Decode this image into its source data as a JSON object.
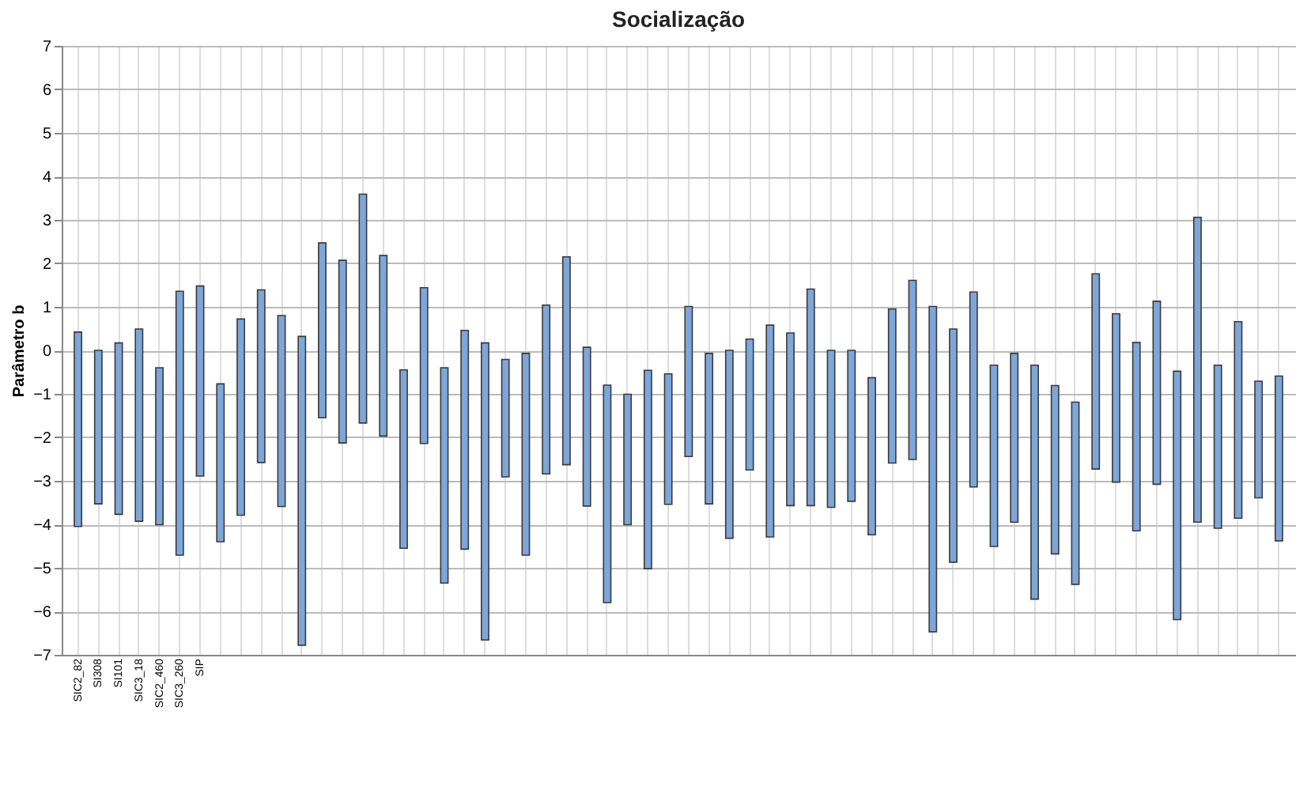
{
  "chart_data": {
    "type": "bar",
    "title": "Socialização",
    "ylabel": "Parâmetro b",
    "categories": [
      "SIC2_82",
      "SI308",
      "SI101",
      "SIC3_18",
      "SIC2_460",
      "SIC3_260",
      "SIP",
      null,
      null,
      null,
      null,
      null,
      null,
      null,
      null,
      null,
      null,
      null,
      null,
      null,
      null,
      null,
      null,
      null,
      null,
      null,
      null,
      null,
      null,
      null,
      null,
      null,
      null,
      null,
      null,
      null,
      null,
      null,
      null,
      null,
      null,
      null,
      null,
      null,
      null,
      null,
      null,
      null,
      null,
      null,
      null,
      null,
      null,
      null,
      null,
      null,
      null,
      null,
      null,
      null
    ],
    "base": [
      -4.05,
      -3.53,
      -3.77,
      -3.93,
      -4.01,
      -4.71,
      -2.89,
      -4.4,
      -3.79,
      -2.58,
      -3.59,
      -6.78,
      -1.55,
      -2.13,
      -1.67,
      -1.97,
      -4.55,
      -2.14,
      -5.35,
      -4.57,
      -6.66,
      -2.91,
      -4.71,
      -2.84,
      -2.63,
      -3.58,
      -5.8,
      -4.01,
      -5.02,
      -3.54,
      -2.44,
      -3.53,
      -4.32,
      -2.75,
      -4.29,
      -3.57,
      -3.57,
      -3.61,
      -3.47,
      -4.24,
      -2.59,
      -2.51,
      -6.47,
      -4.87,
      -3.14,
      -4.51,
      -3.95,
      -5.72,
      -4.68,
      -5.38,
      -2.73,
      -3.03,
      -4.15,
      -3.08,
      -6.19,
      -3.95,
      -4.09,
      -3.86,
      -3.39,
      -4.38
    ],
    "values": [
      4.47,
      3.53,
      3.94,
      4.42,
      3.61,
      6.07,
      4.37,
      3.63,
      4.51,
      3.97,
      4.39,
      7.1,
      4.02,
      4.2,
      5.26,
      4.15,
      4.1,
      3.58,
      4.95,
      5.03,
      6.83,
      2.7,
      4.64,
      3.88,
      4.78,
      3.65,
      5.0,
      3.0,
      4.56,
      3.0,
      3.45,
      3.46,
      4.32,
      3.01,
      4.87,
      3.97,
      4.98,
      3.61,
      3.47,
      3.61,
      3.54,
      4.12,
      7.48,
      5.36,
      4.48,
      4.17,
      3.88,
      5.38,
      3.87,
      4.19,
      4.49,
      3.87,
      4.33,
      4.21,
      5.71,
      7.01,
      3.75,
      4.52,
      2.68,
      3.79
    ],
    "color": "#7ea6d9",
    "ylim": [
      -7,
      7
    ],
    "yticks": [
      -7,
      -6,
      -5,
      -4,
      -3,
      -2,
      -1,
      0,
      1,
      2,
      3,
      4,
      5,
      6,
      7
    ],
    "grid": true
  }
}
